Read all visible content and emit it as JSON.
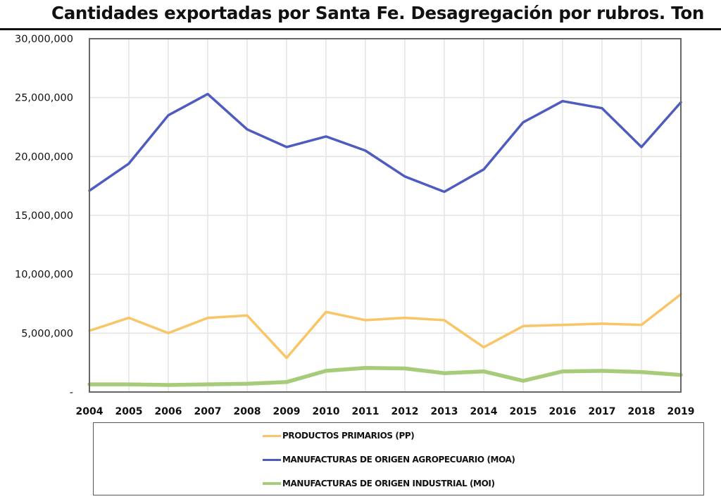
{
  "chart_data": {
    "type": "line",
    "title": "Cantidades exportadas por Santa Fe. Desagregación por rubros. Ton",
    "xlabel": "",
    "ylabel": "",
    "x": [
      "2004",
      "2005",
      "2006",
      "2007",
      "2008",
      "2009",
      "2010",
      "2011",
      "2012",
      "2013",
      "2014",
      "2015",
      "2016",
      "2017",
      "2018",
      "2019"
    ],
    "ylim": [
      0,
      30000000
    ],
    "yticks": [
      0,
      5000000,
      10000000,
      15000000,
      20000000,
      25000000,
      30000000
    ],
    "ytick_labels": [
      "-",
      "5,000,000",
      "10,000,000",
      "15,000,000",
      "20,000,000",
      "25,000,000",
      "30,000,000"
    ],
    "grid": true,
    "legend_position": "bottom",
    "series": [
      {
        "name": "PRODUCTOS PRIMARIOS (PP)",
        "color": "#f9c567",
        "values": [
          5200000,
          6300000,
          5000000,
          6300000,
          6500000,
          2900000,
          6800000,
          6100000,
          6300000,
          6100000,
          3800000,
          5600000,
          5700000,
          5800000,
          5700000,
          8300000
        ]
      },
      {
        "name": "MANUFACTURAS DE ORIGEN AGROPECUARIO (MOA)",
        "color": "#4e5bbf",
        "values": [
          17100000,
          19400000,
          23500000,
          25300000,
          22300000,
          20800000,
          21700000,
          20500000,
          18300000,
          17000000,
          18900000,
          22900000,
          24700000,
          24100000,
          20800000,
          24600000
        ]
      },
      {
        "name": "MANUFACTURAS DE ORIGEN INDUSTRIAL (MOI)",
        "color": "#a6cc7a",
        "values": [
          650000,
          650000,
          600000,
          650000,
          700000,
          850000,
          1800000,
          2050000,
          2000000,
          1600000,
          1750000,
          950000,
          1750000,
          1800000,
          1700000,
          1450000
        ]
      }
    ]
  }
}
